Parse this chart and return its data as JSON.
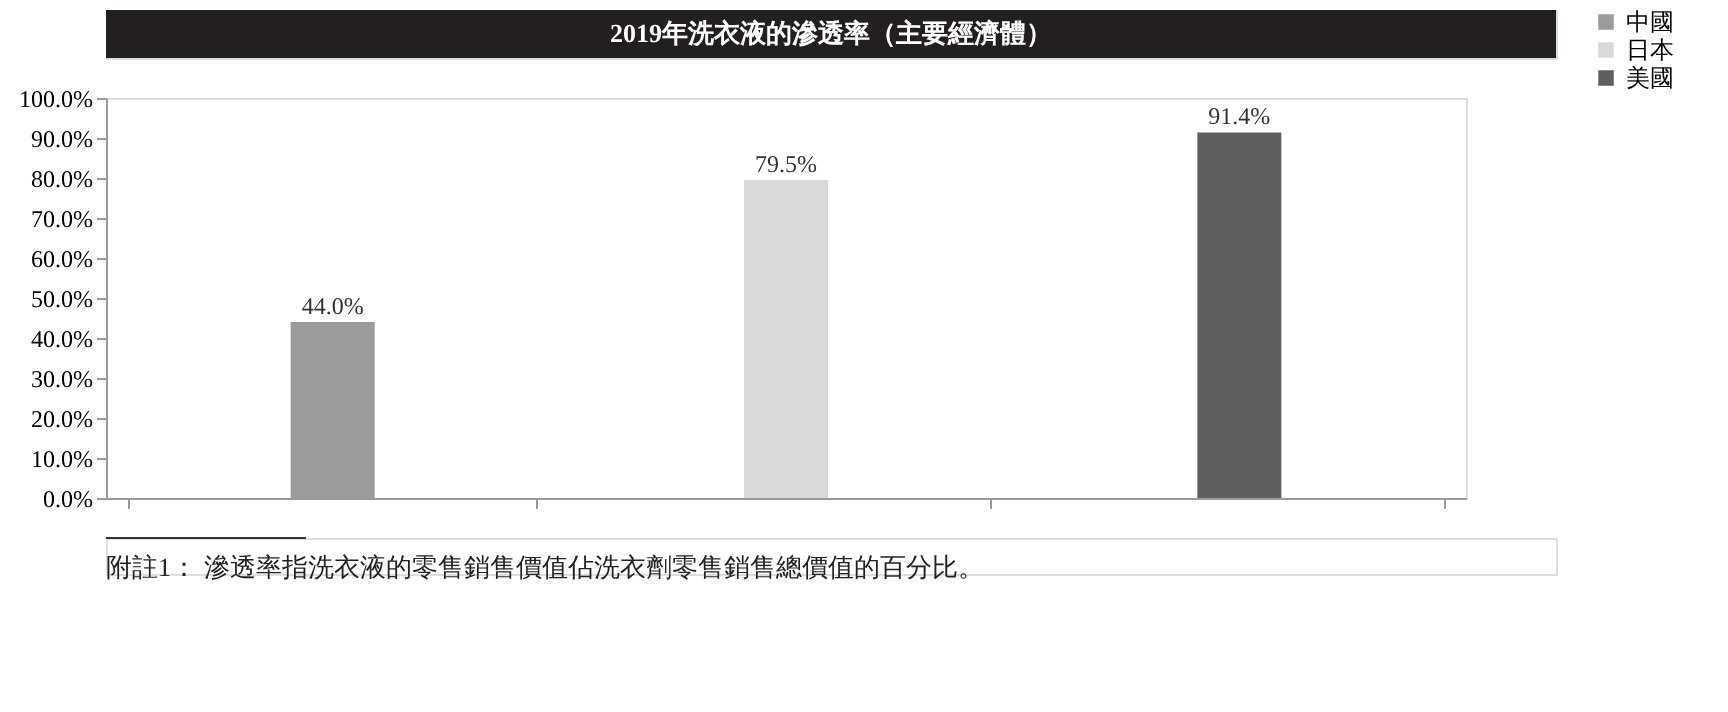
{
  "chart_data": {
    "type": "bar",
    "title": "2019年洗衣液的滲透率（主要經濟體）",
    "categories": [
      null,
      null,
      null
    ],
    "series": [
      {
        "name": "中國",
        "color": "#9b9b9b",
        "values": [
          44.0,
          null,
          null
        ],
        "value_labels": [
          "44.0%",
          null,
          null
        ]
      },
      {
        "name": "日本",
        "color": "#d9d9db",
        "values": [
          null,
          79.5,
          null
        ],
        "value_labels": [
          null,
          "79.5%",
          null
        ]
      },
      {
        "name": "美國",
        "color": "#5f5f62",
        "values": [
          null,
          null,
          91.4
        ],
        "value_labels": [
          null,
          null,
          "91.4%"
        ]
      }
    ],
    "ylim": [
      0,
      100
    ],
    "yticks": [
      {
        "value": 0,
        "label": "0.0%"
      },
      {
        "value": 10,
        "label": "10.0%"
      },
      {
        "value": 20,
        "label": "20.0%"
      },
      {
        "value": 30,
        "label": "30.0%"
      },
      {
        "value": 40,
        "label": "40.0%"
      },
      {
        "value": 50,
        "label": "50.0%"
      },
      {
        "value": 60,
        "label": "60.0%"
      },
      {
        "value": 70,
        "label": "70.0%"
      },
      {
        "value": 80,
        "label": "80.0%"
      },
      {
        "value": 90,
        "label": "90.0%"
      },
      {
        "value": 100,
        "label": "100.0%"
      }
    ],
    "tick_labels": "y",
    "legend": "right",
    "annotations": [
      "附註1： 滲透率指洗衣液的零售銷售價值佔洗衣劑零售銷售總價值的百分比。"
    ]
  }
}
